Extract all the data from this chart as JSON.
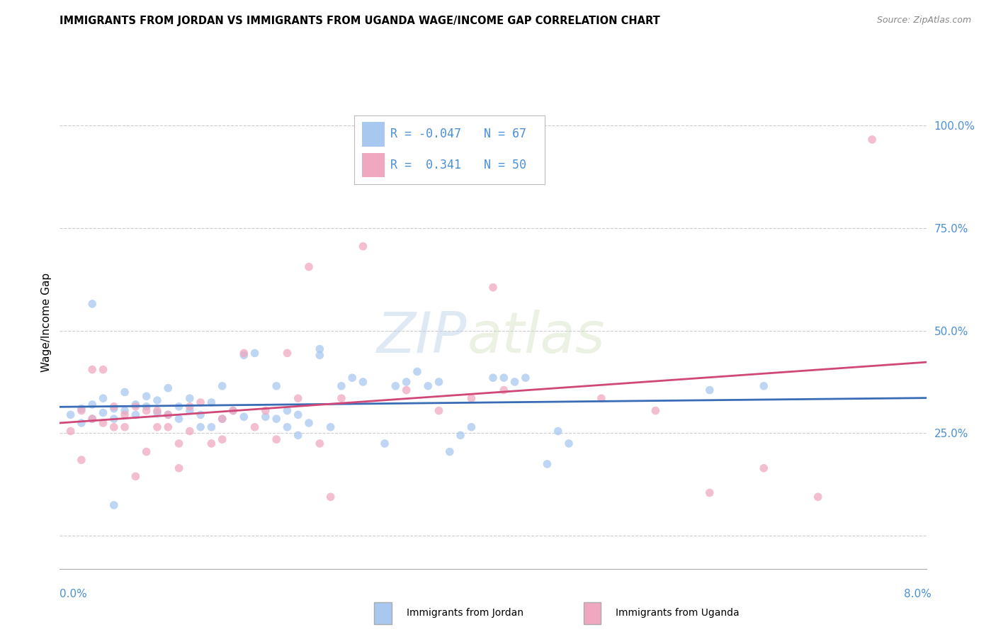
{
  "title": "IMMIGRANTS FROM JORDAN VS IMMIGRANTS FROM UGANDA WAGE/INCOME GAP CORRELATION CHART",
  "source": "Source: ZipAtlas.com",
  "ylabel": "Wage/Income Gap",
  "xlim": [
    0.0,
    0.08
  ],
  "ylim": [
    -0.08,
    1.12
  ],
  "yticks": [
    0.0,
    0.25,
    0.5,
    0.75,
    1.0
  ],
  "ytick_labels": [
    "",
    "25.0%",
    "50.0%",
    "75.0%",
    "100.0%"
  ],
  "watermark_line1": "ZIP",
  "watermark_line2": "atlas",
  "jordan_color": "#a8c8f0",
  "uganda_color": "#f0a8c0",
  "jordan_line_color": "#3a6cb5",
  "uganda_line_color": "#d04878",
  "jordan_scatter": [
    [
      0.001,
      0.295
    ],
    [
      0.002,
      0.275
    ],
    [
      0.002,
      0.31
    ],
    [
      0.003,
      0.32
    ],
    [
      0.003,
      0.285
    ],
    [
      0.004,
      0.3
    ],
    [
      0.004,
      0.335
    ],
    [
      0.005,
      0.31
    ],
    [
      0.005,
      0.285
    ],
    [
      0.006,
      0.305
    ],
    [
      0.006,
      0.35
    ],
    [
      0.007,
      0.32
    ],
    [
      0.007,
      0.295
    ],
    [
      0.008,
      0.34
    ],
    [
      0.008,
      0.315
    ],
    [
      0.009,
      0.3
    ],
    [
      0.009,
      0.33
    ],
    [
      0.01,
      0.295
    ],
    [
      0.01,
      0.36
    ],
    [
      0.011,
      0.315
    ],
    [
      0.011,
      0.285
    ],
    [
      0.012,
      0.305
    ],
    [
      0.012,
      0.335
    ],
    [
      0.013,
      0.295
    ],
    [
      0.013,
      0.265
    ],
    [
      0.014,
      0.325
    ],
    [
      0.014,
      0.265
    ],
    [
      0.015,
      0.285
    ],
    [
      0.015,
      0.365
    ],
    [
      0.016,
      0.305
    ],
    [
      0.017,
      0.44
    ],
    [
      0.017,
      0.29
    ],
    [
      0.018,
      0.445
    ],
    [
      0.019,
      0.29
    ],
    [
      0.02,
      0.365
    ],
    [
      0.02,
      0.285
    ],
    [
      0.021,
      0.305
    ],
    [
      0.021,
      0.265
    ],
    [
      0.022,
      0.295
    ],
    [
      0.022,
      0.245
    ],
    [
      0.023,
      0.275
    ],
    [
      0.024,
      0.455
    ],
    [
      0.024,
      0.44
    ],
    [
      0.025,
      0.265
    ],
    [
      0.026,
      0.365
    ],
    [
      0.027,
      0.385
    ],
    [
      0.028,
      0.375
    ],
    [
      0.03,
      0.225
    ],
    [
      0.031,
      0.365
    ],
    [
      0.032,
      0.375
    ],
    [
      0.033,
      0.4
    ],
    [
      0.034,
      0.365
    ],
    [
      0.035,
      0.375
    ],
    [
      0.036,
      0.205
    ],
    [
      0.037,
      0.245
    ],
    [
      0.038,
      0.265
    ],
    [
      0.04,
      0.385
    ],
    [
      0.041,
      0.385
    ],
    [
      0.042,
      0.375
    ],
    [
      0.043,
      0.385
    ],
    [
      0.045,
      0.175
    ],
    [
      0.046,
      0.255
    ],
    [
      0.047,
      0.225
    ],
    [
      0.06,
      0.355
    ],
    [
      0.065,
      0.365
    ],
    [
      0.003,
      0.565
    ],
    [
      0.005,
      0.075
    ]
  ],
  "uganda_scatter": [
    [
      0.001,
      0.255
    ],
    [
      0.002,
      0.185
    ],
    [
      0.002,
      0.305
    ],
    [
      0.003,
      0.285
    ],
    [
      0.003,
      0.405
    ],
    [
      0.004,
      0.405
    ],
    [
      0.004,
      0.275
    ],
    [
      0.005,
      0.315
    ],
    [
      0.005,
      0.265
    ],
    [
      0.006,
      0.295
    ],
    [
      0.006,
      0.265
    ],
    [
      0.007,
      0.145
    ],
    [
      0.007,
      0.315
    ],
    [
      0.008,
      0.205
    ],
    [
      0.008,
      0.305
    ],
    [
      0.009,
      0.305
    ],
    [
      0.009,
      0.265
    ],
    [
      0.01,
      0.295
    ],
    [
      0.01,
      0.265
    ],
    [
      0.011,
      0.165
    ],
    [
      0.011,
      0.225
    ],
    [
      0.012,
      0.315
    ],
    [
      0.012,
      0.255
    ],
    [
      0.013,
      0.325
    ],
    [
      0.014,
      0.225
    ],
    [
      0.015,
      0.285
    ],
    [
      0.015,
      0.235
    ],
    [
      0.016,
      0.305
    ],
    [
      0.017,
      0.445
    ],
    [
      0.018,
      0.265
    ],
    [
      0.019,
      0.305
    ],
    [
      0.02,
      0.235
    ],
    [
      0.021,
      0.445
    ],
    [
      0.022,
      0.335
    ],
    [
      0.023,
      0.655
    ],
    [
      0.024,
      0.225
    ],
    [
      0.025,
      0.095
    ],
    [
      0.026,
      0.335
    ],
    [
      0.028,
      0.705
    ],
    [
      0.032,
      0.355
    ],
    [
      0.035,
      0.305
    ],
    [
      0.038,
      0.335
    ],
    [
      0.04,
      0.605
    ],
    [
      0.041,
      0.355
    ],
    [
      0.05,
      0.335
    ],
    [
      0.055,
      0.305
    ],
    [
      0.06,
      0.105
    ],
    [
      0.065,
      0.165
    ],
    [
      0.07,
      0.095
    ],
    [
      0.075,
      0.965
    ]
  ],
  "jordan_dot_size": 70,
  "uganda_dot_size": 70,
  "background_color": "#ffffff",
  "grid_color": "#cccccc",
  "legend_jordan_label": "R = -0.047   N = 67",
  "legend_uganda_label": "R =  0.341   N = 50"
}
